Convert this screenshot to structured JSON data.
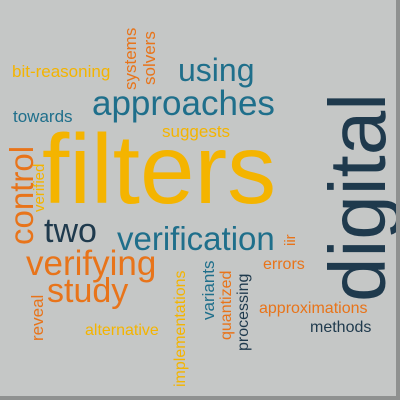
{
  "palette": {
    "background": "#c5c7c6",
    "shadow": "#8f9190",
    "navy": "#1f3a4d",
    "teal": "#1f6f8b",
    "gold": "#f4b400",
    "orange": "#e8741a"
  },
  "words": {
    "digital": "digital",
    "filters": "filters",
    "approaches": "approaches",
    "using": "using",
    "verification": "verification",
    "verifying": "verifying",
    "study": "study",
    "two": "two",
    "control": "control",
    "bit_reasoning": "bit-reasoning",
    "systems": "systems",
    "solvers": "solvers",
    "towards": "towards",
    "suggests": "suggests",
    "verified": "verified",
    "iir": "iir",
    "errors": "errors",
    "reveal": "reveal",
    "implementations": "implementations",
    "variants": "variants",
    "quantized": "quantized",
    "processing": "processing",
    "approximations": "approximations",
    "methods": "methods",
    "alternative": "alternative"
  }
}
